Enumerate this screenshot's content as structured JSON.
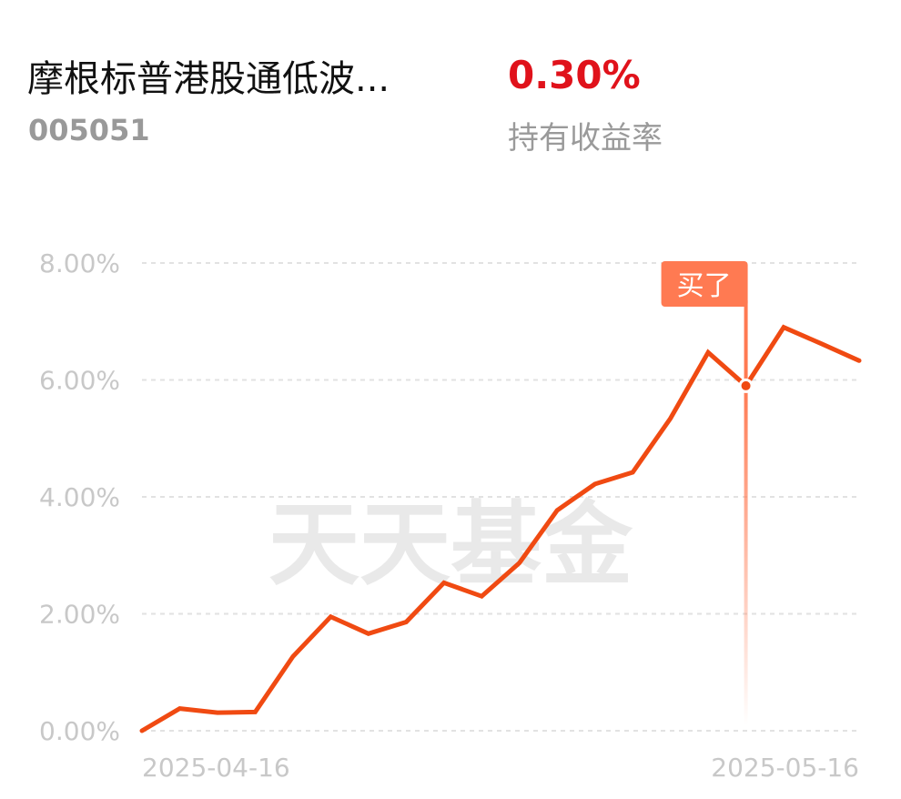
{
  "header": {
    "fund_name": "摩根标普港股通低波...",
    "fund_code": "005051",
    "holding_return": "0.30%",
    "holding_return_label": "持有收益率"
  },
  "watermark": "天天基金",
  "colors": {
    "line": "#f04a12",
    "buy_marker": "#ff7a52",
    "return_text": "#e0121b",
    "grid": "#e2e2e2",
    "tick_text": "#c8c8c8"
  },
  "chart_data": {
    "type": "line",
    "title": "",
    "xlabel": "",
    "ylabel": "",
    "ylim": [
      0,
      8
    ],
    "y_ticks": [
      0,
      2,
      4,
      6,
      8
    ],
    "y_tick_labels": [
      "0.00%",
      "2.00%",
      "4.00%",
      "6.00%",
      "8.00%"
    ],
    "x_tick_labels": [
      "2025-04-16",
      "2025-05-16"
    ],
    "grid": true,
    "series": [
      {
        "values": [
          0.0,
          0.38,
          0.31,
          0.32,
          1.27,
          1.95,
          1.66,
          1.86,
          2.53,
          2.3,
          2.87,
          3.77,
          4.22,
          4.42,
          5.34,
          6.47,
          5.9,
          6.9,
          6.62,
          6.33
        ]
      }
    ],
    "annotation": {
      "label": "买了",
      "index": 16,
      "value": 5.9
    }
  }
}
